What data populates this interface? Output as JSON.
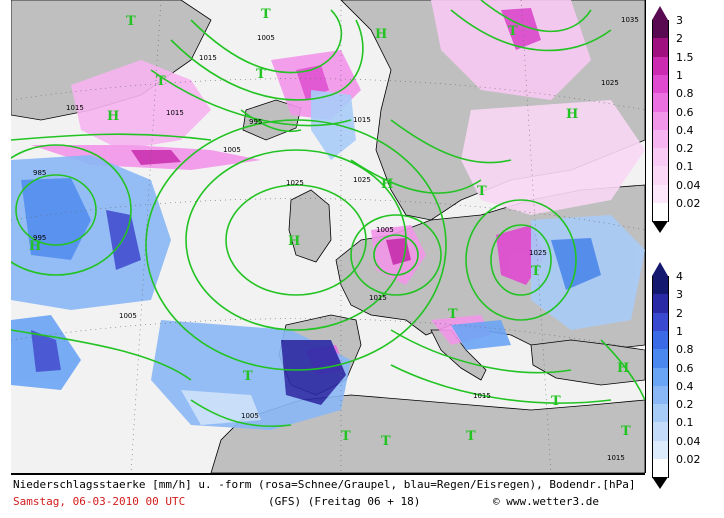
{
  "map": {
    "pressure_labels": [
      {
        "text": "1005"
      },
      {
        "text": "1015"
      },
      {
        "text": "1015"
      },
      {
        "text": "995"
      },
      {
        "text": "1005"
      },
      {
        "text": "1015"
      },
      {
        "text": "1025"
      },
      {
        "text": "1035"
      },
      {
        "text": "1025"
      },
      {
        "text": "985"
      },
      {
        "text": "995"
      },
      {
        "text": "1005"
      },
      {
        "text": "1015"
      },
      {
        "text": "1015"
      },
      {
        "text": "1025"
      },
      {
        "text": "1005"
      },
      {
        "text": "1005"
      },
      {
        "text": "1015"
      },
      {
        "text": "1015"
      },
      {
        "text": "1025"
      }
    ],
    "high_markers": [
      "H",
      "H",
      "H",
      "H",
      "H",
      "H",
      "H"
    ],
    "low_markers": [
      "T",
      "T",
      "T",
      "T",
      "T",
      "T",
      "T",
      "T",
      "T",
      "T",
      "T",
      "T",
      "T",
      "T"
    ]
  },
  "legend_snow": {
    "title": "rosa=Schnee/Graupel",
    "ticks": [
      "3",
      "2",
      "1.5",
      "1",
      "0.8",
      "0.6",
      "0.4",
      "0.2",
      "0.1",
      "0.04",
      "0.02"
    ],
    "colors": [
      "#5a0a50",
      "#a0107e",
      "#cc2ab0",
      "#e04ad0",
      "#ec70e0",
      "#f296ea",
      "#f6b4f0",
      "#f8caf4",
      "#fad8f6",
      "#fce8fa",
      "#ffffff"
    ]
  },
  "legend_rain": {
    "ticks": [
      "4",
      "3",
      "2",
      "1",
      "0.8",
      "0.6",
      "0.4",
      "0.2",
      "0.1",
      "0.04",
      "0.02"
    ],
    "colors": [
      "#14186e",
      "#2a2aa6",
      "#3a4ad0",
      "#3a6ae6",
      "#4a88f0",
      "#6aa4f4",
      "#8ab8f6",
      "#a8ccf8",
      "#c4dcfa",
      "#dcecfc",
      "#ffffff"
    ]
  },
  "footer": {
    "line1": "Niederschlagsstaerke [mm/h] u. -form (rosa=Schnee/Graupel, blau=Regen/Eisregen), Bodendr.[hPa]",
    "date": "Samstag, 06-03-2010  00 UTC",
    "run": "(GFS)  (Freitag 06 + 18)",
    "site": "© www.wetter3.de"
  },
  "colors": {
    "land": "#bfbfbf",
    "sea": "#f2f2f2",
    "isobar": "#22c322",
    "coast": "#000000",
    "marker": "#22c322"
  }
}
